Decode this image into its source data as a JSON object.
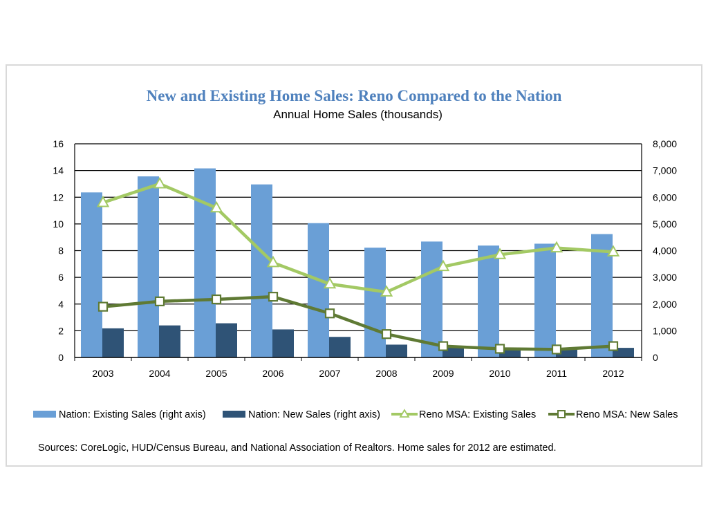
{
  "chart_data": {
    "type": "bar",
    "title": "New and Existing Home Sales: Reno Compared to the Nation",
    "subtitle": "Annual Home Sales (thousands)",
    "categories": [
      "2003",
      "2004",
      "2005",
      "2006",
      "2007",
      "2008",
      "2009",
      "2010",
      "2011",
      "2012"
    ],
    "ylim": [
      0,
      16
    ],
    "y_ticks": [
      "0",
      "2",
      "4",
      "6",
      "8",
      "10",
      "12",
      "14",
      "16"
    ],
    "y2lim": [
      0,
      8000
    ],
    "y2_ticks": [
      "0",
      "1,000",
      "2,000",
      "3,000",
      "4,000",
      "5,000",
      "6,000",
      "7,000",
      "8,000"
    ],
    "grid": "horizontal",
    "legend_position": "bottom",
    "series": [
      {
        "name": "Nation: Existing Sales (right axis)",
        "type": "bar",
        "axis": "right",
        "color": "#6a9fd6",
        "values": [
          6180,
          6780,
          7080,
          6480,
          5030,
          4110,
          4340,
          4190,
          4260,
          4620
        ]
      },
      {
        "name": "Nation: New Sales (right axis)",
        "type": "bar",
        "axis": "right",
        "color": "#2f5376",
        "values": [
          1090,
          1200,
          1280,
          1050,
          770,
          480,
          370,
          320,
          310,
          360
        ]
      },
      {
        "name": "Reno MSA: Existing Sales",
        "type": "line",
        "axis": "left",
        "color": "#a3c964",
        "marker": "triangle",
        "values": [
          11.6,
          13.0,
          11.2,
          7.1,
          5.5,
          4.9,
          6.8,
          7.7,
          8.2,
          7.9
        ]
      },
      {
        "name": "Reno MSA: New Sales",
        "type": "line",
        "axis": "left",
        "color": "#5f7a34",
        "marker": "square",
        "values": [
          3.8,
          4.2,
          4.35,
          4.55,
          3.3,
          1.75,
          0.85,
          0.65,
          0.6,
          0.85
        ]
      }
    ],
    "source": "Sources: CoreLogic, HUD/Census  Bureau, and National Association of Realtors. Home sales for 2012 are estimated."
  }
}
